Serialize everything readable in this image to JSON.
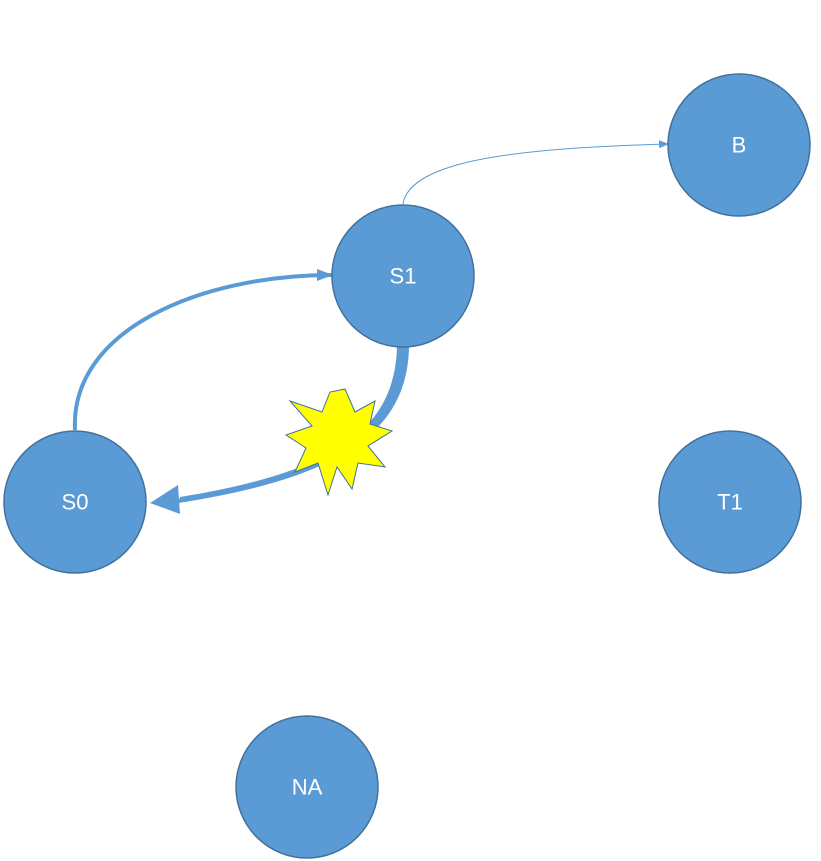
{
  "colors": {
    "node_fill": "#5b9bd5",
    "node_stroke": "#41719c",
    "edge": "#5b9bd5",
    "starburst_fill": "#ffff00",
    "starburst_stroke": "#41719c",
    "label": "#ffffff"
  },
  "nodes": {
    "b": {
      "label": "B"
    },
    "s1": {
      "label": "S1"
    },
    "s0": {
      "label": "S0"
    },
    "t1": {
      "label": "T1"
    },
    "na": {
      "label": "NA"
    }
  },
  "edges": [
    {
      "from": "S1",
      "to": "B",
      "weight": "thin"
    },
    {
      "from": "S0",
      "to": "S1",
      "weight": "medium"
    },
    {
      "from": "S1",
      "to": "S0",
      "weight": "thick",
      "marker": "starburst"
    }
  ]
}
